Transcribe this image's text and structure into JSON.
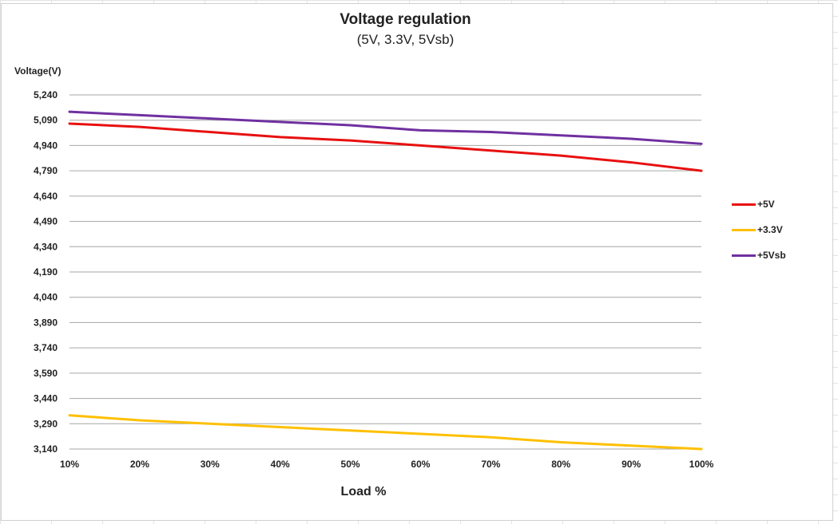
{
  "chart_data": {
    "type": "line",
    "title": "Voltage regulation",
    "subtitle": "(5V, 3.3V, 5Vsb)",
    "xlabel": "Load %",
    "ylabel": "Voltage(V)",
    "categories": [
      "10%",
      "20%",
      "30%",
      "40%",
      "50%",
      "60%",
      "70%",
      "80%",
      "90%",
      "100%"
    ],
    "y_ticks": [
      "5,240",
      "5,090",
      "4,940",
      "4,790",
      "4,640",
      "4,490",
      "4,340",
      "4,190",
      "4,040",
      "3,890",
      "3,740",
      "3,590",
      "3,440",
      "3,290",
      "3,140"
    ],
    "ylim": [
      3.14,
      5.24
    ],
    "grid": true,
    "legend_position": "right",
    "series": [
      {
        "name": "+5V",
        "color": "#e81010",
        "values": [
          5.07,
          5.05,
          5.02,
          4.99,
          4.97,
          4.94,
          4.91,
          4.88,
          4.84,
          4.79
        ]
      },
      {
        "name": "+3.3V",
        "color": "#ffc000",
        "values": [
          3.34,
          3.31,
          3.29,
          3.27,
          3.25,
          3.23,
          3.21,
          3.18,
          3.16,
          3.14
        ]
      },
      {
        "name": "+5Vsb",
        "color": "#7030a0",
        "values": [
          5.14,
          5.12,
          5.1,
          5.08,
          5.06,
          5.03,
          5.02,
          5.0,
          4.98,
          4.95
        ]
      }
    ]
  }
}
